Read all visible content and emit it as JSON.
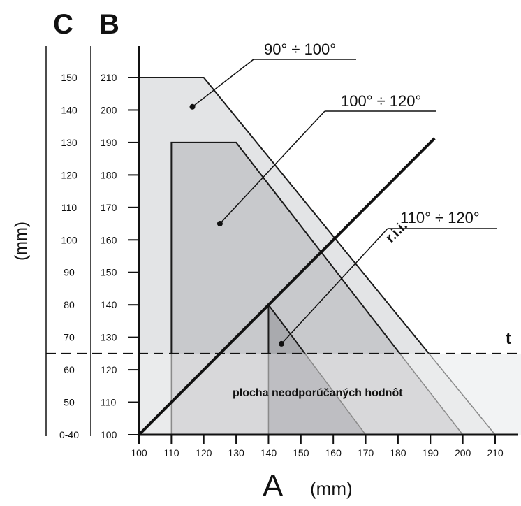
{
  "chart_data": {
    "type": "area",
    "x_axis": {
      "label": "A",
      "unit": "(mm)",
      "min": 100,
      "max": 210,
      "ticks": [
        100,
        110,
        120,
        130,
        140,
        150,
        160,
        170,
        180,
        190,
        200,
        210
      ]
    },
    "y_axis_B": {
      "label": "B",
      "min": 100,
      "max": 210,
      "ticks": [
        100,
        110,
        120,
        130,
        140,
        150,
        160,
        170,
        180,
        190,
        200,
        210
      ]
    },
    "y_axis_C": {
      "label": "C",
      "unit": "(mm)",
      "ticks": [
        {
          "b": 100,
          "label": "0-40"
        },
        {
          "b": 110,
          "label": "50"
        },
        {
          "b": 120,
          "label": "60"
        },
        {
          "b": 130,
          "label": "70"
        },
        {
          "b": 140,
          "label": "80"
        },
        {
          "b": 150,
          "label": "90"
        },
        {
          "b": 160,
          "label": "100"
        },
        {
          "b": 170,
          "label": "110"
        },
        {
          "b": 180,
          "label": "120"
        },
        {
          "b": 190,
          "label": "130"
        },
        {
          "b": 200,
          "label": "140"
        },
        {
          "b": 210,
          "label": "150"
        }
      ]
    },
    "regions": [
      {
        "name": "90° ÷ 100°",
        "color": "#e3e4e6",
        "polygon": [
          [
            100,
            100
          ],
          [
            100,
            210
          ],
          [
            120,
            210
          ],
          [
            210,
            100
          ]
        ]
      },
      {
        "name": "100° ÷ 120°",
        "color": "#c8c9cc",
        "polygon": [
          [
            110,
            100
          ],
          [
            110,
            190
          ],
          [
            130,
            190
          ],
          [
            200,
            100
          ]
        ]
      },
      {
        "name": "110° ÷ 120°",
        "color": "#a9aaae",
        "polygon": [
          [
            140,
            100
          ],
          [
            140,
            140
          ],
          [
            170,
            100
          ]
        ]
      }
    ],
    "unrecommended_area": {
      "label": "plocha neodporúčaných hodnôt",
      "color": "#f2f3f4"
    },
    "rii_line": {
      "label": "r.i.i.",
      "from": [
        100,
        100
      ],
      "to": [
        190,
        190
      ]
    },
    "t_line": {
      "label": "t",
      "b": 125
    },
    "annotations": [
      {
        "text": "90° ÷ 100°",
        "point": [
          116.5,
          201
        ]
      },
      {
        "text": "100° ÷ 120°",
        "point": [
          125,
          165
        ]
      },
      {
        "text": "110° ÷ 120°",
        "point": [
          144,
          128
        ]
      }
    ]
  }
}
